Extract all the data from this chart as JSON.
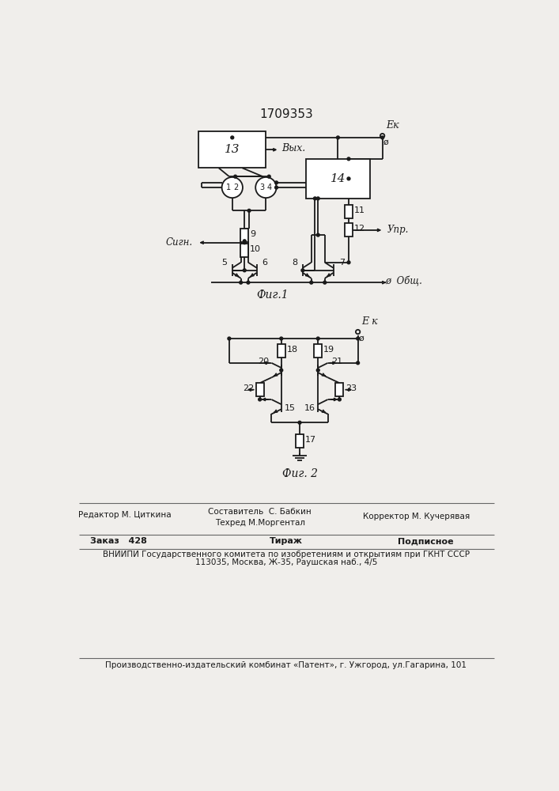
{
  "title": "1709353",
  "bg_color": "#f0eeeb",
  "line_color": "#1a1a1a",
  "fig1_caption": "Фиг.1",
  "fig2_caption": "Фиг. 2",
  "label_ek1": "Ек",
  "label_ek2": "Е к",
  "label_vikh": "Вых.",
  "label_sign": "Сигн.",
  "label_upr": "Упр.",
  "label_obsh": "Общ.",
  "footer_editor": "Редактор М. Циткина",
  "footer_compiler": "Составитель  С. Бабкин",
  "footer_techred": "Техред М.Моргентал",
  "footer_corrector": "Корректор М. Кучерявая",
  "footer_order": "Заказ   428",
  "footer_circulation": "Тираж",
  "footer_subscription": "Подписное",
  "footer_vniipи": "ВНИИПИ Государственного комитета по изобретениям и открытиям при ГКНТ СССР",
  "footer_address": "113035, Москва, Ж-35, Раушская наб., 4/5",
  "footer_plant": "Производственно-издательский комбинат «Патент», г. Ужгород, ул.Гагарина, 101"
}
